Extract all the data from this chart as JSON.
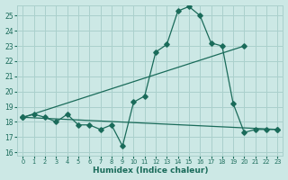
{
  "title": "",
  "xlabel": "Humidex (Indice chaleur)",
  "ylabel": "",
  "bg_color": "#cce8e5",
  "grid_color": "#aad0cc",
  "line_color": "#1a6b5a",
  "xlim": [
    -0.5,
    23.5
  ],
  "ylim": [
    15.8,
    25.7
  ],
  "yticks": [
    16,
    17,
    18,
    19,
    20,
    21,
    22,
    23,
    24,
    25
  ],
  "xticks": [
    0,
    1,
    2,
    3,
    4,
    5,
    6,
    7,
    8,
    9,
    10,
    11,
    12,
    13,
    14,
    15,
    16,
    17,
    18,
    19,
    20,
    21,
    22,
    23
  ],
  "line1_x": [
    0,
    1,
    2,
    3,
    4,
    5,
    6,
    7,
    8,
    9,
    10,
    11,
    12,
    13,
    14,
    15,
    16,
    17,
    18,
    19,
    20,
    21,
    22,
    23
  ],
  "line1_y": [
    18.3,
    18.5,
    18.3,
    18.0,
    18.5,
    17.8,
    17.8,
    17.5,
    17.8,
    16.4,
    19.3,
    19.7,
    22.6,
    23.1,
    25.3,
    25.6,
    25.0,
    23.2,
    23.0,
    19.2,
    17.3,
    17.5,
    17.5,
    17.5
  ],
  "line2_x": [
    0,
    20
  ],
  "line2_y": [
    18.3,
    23.0
  ],
  "line3_x": [
    0,
    23
  ],
  "line3_y": [
    18.3,
    17.5
  ]
}
